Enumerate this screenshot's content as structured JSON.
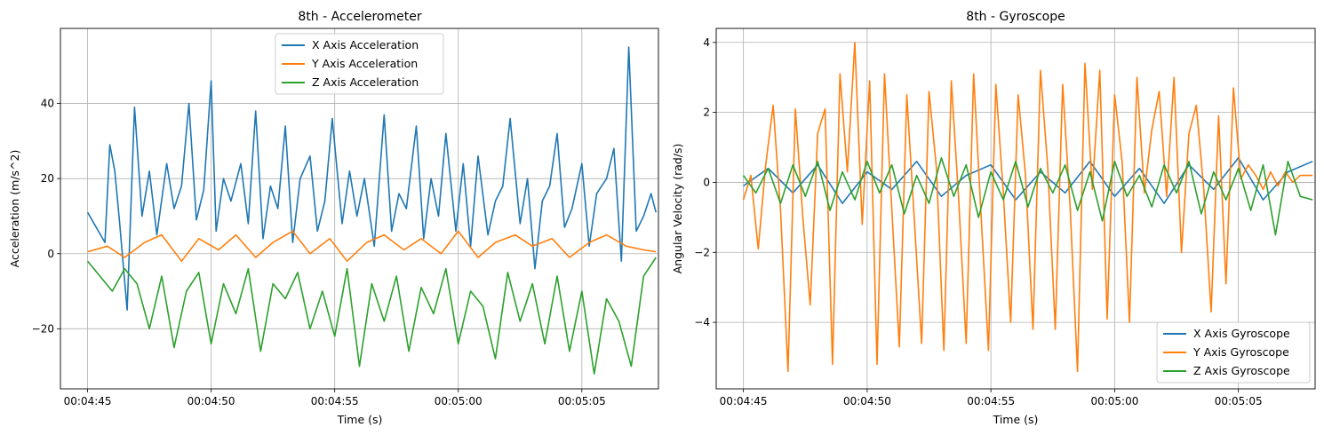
{
  "chart_data": [
    {
      "type": "line",
      "title": "8th - Accelerometer",
      "xlabel": "Time (s)",
      "ylabel": "Acceleration (m/s^2)",
      "x_ticks": [
        "00:04:45",
        "00:04:50",
        "00:04:55",
        "00:05:00",
        "00:05:05"
      ],
      "x_tick_seconds": [
        0,
        5,
        10,
        15,
        20
      ],
      "xlim": [
        -1.1,
        23.1
      ],
      "y_ticks": [
        -20,
        0,
        20,
        40
      ],
      "y_tick_labels": [
        "−20",
        "0",
        "20",
        "40"
      ],
      "ylim": [
        -36,
        60
      ],
      "grid": true,
      "legend_position": "upper center",
      "series": [
        {
          "name": "X Axis Acceleration",
          "color": "#1f77b4",
          "x": [
            0,
            0.7,
            0.9,
            1.1,
            1.3,
            1.6,
            1.9,
            2.2,
            2.5,
            2.8,
            3.2,
            3.5,
            3.8,
            4.1,
            4.4,
            4.7,
            5.0,
            5.2,
            5.5,
            5.8,
            6.2,
            6.5,
            6.8,
            7.1,
            7.4,
            7.7,
            8.0,
            8.3,
            8.6,
            9.0,
            9.3,
            9.6,
            9.9,
            10.3,
            10.6,
            10.9,
            11.2,
            11.6,
            12.0,
            12.3,
            12.6,
            12.9,
            13.3,
            13.6,
            13.9,
            14.2,
            14.5,
            14.9,
            15.2,
            15.5,
            15.8,
            16.2,
            16.5,
            16.8,
            17.1,
            17.5,
            17.8,
            18.1,
            18.4,
            18.7,
            19.0,
            19.3,
            19.6,
            20.0,
            20.3,
            20.6,
            21.0,
            21.3,
            21.6,
            21.9,
            22.2,
            22.5,
            22.8,
            23.0
          ],
          "values": [
            11,
            3,
            29,
            22,
            8,
            -15,
            39,
            10,
            22,
            5,
            24,
            12,
            18,
            40,
            9,
            17,
            46,
            6,
            20,
            14,
            24,
            8,
            38,
            4,
            18,
            12,
            34,
            3,
            20,
            26,
            6,
            14,
            36,
            8,
            22,
            10,
            20,
            2,
            37,
            6,
            16,
            12,
            34,
            4,
            20,
            10,
            32,
            6,
            24,
            2,
            26,
            5,
            14,
            18,
            36,
            8,
            20,
            -4,
            14,
            18,
            32,
            7,
            12,
            24,
            2,
            16,
            20,
            28,
            -2,
            55,
            6,
            10,
            16,
            11
          ]
        },
        {
          "name": "Y Axis Acceleration",
          "color": "#ff7f0e",
          "x": [
            0,
            0.8,
            1.5,
            2.3,
            3.0,
            3.8,
            4.5,
            5.3,
            6.0,
            6.8,
            7.5,
            8.3,
            9.0,
            9.8,
            10.5,
            11.3,
            12.0,
            12.8,
            13.5,
            14.3,
            15.0,
            15.8,
            16.5,
            17.3,
            18.0,
            18.8,
            19.5,
            20.3,
            21.0,
            21.8,
            22.5,
            23.0
          ],
          "values": [
            0.5,
            2,
            -1,
            3,
            5,
            -2,
            4,
            1,
            5,
            -1,
            3,
            6,
            0,
            4,
            -2,
            3,
            5,
            1,
            4,
            0,
            6,
            -1,
            3,
            5,
            2,
            4,
            -1,
            3,
            5,
            2,
            1,
            0.5
          ]
        },
        {
          "name": "Z Axis Acceleration",
          "color": "#2ca02c",
          "x": [
            0,
            0.5,
            1.0,
            1.5,
            2.0,
            2.5,
            3.0,
            3.5,
            4.0,
            4.5,
            5.0,
            5.5,
            6.0,
            6.5,
            7.0,
            7.5,
            8.0,
            8.5,
            9.0,
            9.5,
            10.0,
            10.5,
            11.0,
            11.5,
            12.0,
            12.5,
            13.0,
            13.5,
            14.0,
            14.5,
            15.0,
            15.5,
            16.0,
            16.5,
            17.0,
            17.5,
            18.0,
            18.5,
            19.0,
            19.5,
            20.0,
            20.5,
            21.0,
            21.5,
            22.0,
            22.5,
            23.0
          ],
          "values": [
            -2,
            -6,
            -10,
            -4,
            -8,
            -20,
            -6,
            -25,
            -10,
            -5,
            -24,
            -8,
            -16,
            -4,
            -26,
            -8,
            -12,
            -5,
            -20,
            -10,
            -22,
            -4,
            -30,
            -8,
            -18,
            -6,
            -26,
            -9,
            -16,
            -4,
            -24,
            -10,
            -14,
            -28,
            -5,
            -18,
            -8,
            -24,
            -6,
            -26,
            -10,
            -32,
            -12,
            -18,
            -30,
            -6,
            -1
          ]
        }
      ]
    },
    {
      "type": "line",
      "title": "8th - Gyroscope",
      "xlabel": "Time (s)",
      "ylabel": "Angular Velocity (rad/s)",
      "x_ticks": [
        "00:04:45",
        "00:04:50",
        "00:04:55",
        "00:05:00",
        "00:05:05"
      ],
      "x_tick_seconds": [
        0,
        5,
        10,
        15,
        20
      ],
      "xlim": [
        -1.1,
        23.1
      ],
      "y_ticks": [
        -4,
        -2,
        0,
        2,
        4
      ],
      "y_tick_labels": [
        "−4",
        "−2",
        "0",
        "2",
        "4"
      ],
      "ylim": [
        -5.9,
        4.4
      ],
      "grid": true,
      "legend_position": "lower right",
      "series": [
        {
          "name": "X Axis Gyroscope",
          "color": "#1f77b4",
          "x": [
            0,
            1,
            2,
            3,
            4,
            5,
            6,
            7,
            8,
            9,
            10,
            11,
            12,
            13,
            14,
            15,
            16,
            17,
            18,
            19,
            20,
            21,
            22,
            23
          ],
          "values": [
            -0.1,
            0.4,
            -0.3,
            0.5,
            -0.6,
            0.3,
            -0.2,
            0.6,
            -0.4,
            0.2,
            0.5,
            -0.5,
            0.3,
            -0.3,
            0.6,
            -0.4,
            0.4,
            -0.6,
            0.5,
            -0.2,
            0.7,
            -0.5,
            0.3,
            0.6
          ]
        },
        {
          "name": "Y Axis Gyroscope",
          "color": "#ff7f0e",
          "x": [
            0,
            0.3,
            0.6,
            0.9,
            1.2,
            1.5,
            1.8,
            2.1,
            2.4,
            2.7,
            3.0,
            3.3,
            3.6,
            3.9,
            4.2,
            4.5,
            4.8,
            5.1,
            5.4,
            5.7,
            6.0,
            6.3,
            6.6,
            6.9,
            7.2,
            7.5,
            7.8,
            8.1,
            8.4,
            8.7,
            9.0,
            9.3,
            9.6,
            9.9,
            10.2,
            10.5,
            10.8,
            11.1,
            11.4,
            11.7,
            12.0,
            12.3,
            12.6,
            12.9,
            13.2,
            13.5,
            13.8,
            14.1,
            14.4,
            14.7,
            15.0,
            15.3,
            15.6,
            15.9,
            16.2,
            16.5,
            16.8,
            17.1,
            17.4,
            17.7,
            18.0,
            18.3,
            18.6,
            18.9,
            19.2,
            19.5,
            19.8,
            20.1,
            20.4,
            20.7,
            21.0,
            21.3,
            21.6,
            21.9,
            22.2,
            22.5,
            22.8,
            23.0
          ],
          "values": [
            -0.5,
            0.2,
            -1.9,
            0.5,
            2.2,
            -0.8,
            -5.4,
            2.1,
            -1.0,
            -3.5,
            1.4,
            2.1,
            -5.2,
            3.1,
            0.3,
            4.0,
            -1.2,
            2.9,
            -5.2,
            3.1,
            -0.8,
            -4.7,
            2.5,
            -1.0,
            -4.6,
            2.6,
            0.4,
            -4.8,
            2.9,
            -0.5,
            -4.6,
            3.1,
            -0.9,
            -4.8,
            2.8,
            -0.3,
            -4.0,
            2.5,
            0.2,
            -4.2,
            3.2,
            0.4,
            -4.2,
            2.8,
            -0.7,
            -5.4,
            3.4,
            -0.2,
            3.2,
            -3.9,
            2.5,
            0.6,
            -4.0,
            3.0,
            -0.3,
            1.5,
            2.6,
            -0.4,
            3.0,
            -2.0,
            1.4,
            2.2,
            -0.2,
            -3.7,
            1.9,
            -2.9,
            2.7,
            0.1,
            0.5,
            0.2,
            -0.2,
            0.3,
            -0.1,
            0.3,
            0.0,
            0.2,
            0.2,
            0.2
          ]
        },
        {
          "name": "Z Axis Gyroscope",
          "color": "#2ca02c",
          "x": [
            0,
            0.5,
            1.0,
            1.5,
            2.0,
            2.5,
            3.0,
            3.5,
            4.0,
            4.5,
            5.0,
            5.5,
            6.0,
            6.5,
            7.0,
            7.5,
            8.0,
            8.5,
            9.0,
            9.5,
            10.0,
            10.5,
            11.0,
            11.5,
            12.0,
            12.5,
            13.0,
            13.5,
            14.0,
            14.5,
            15.0,
            15.5,
            16.0,
            16.5,
            17.0,
            17.5,
            18.0,
            18.5,
            19.0,
            19.5,
            20.0,
            20.5,
            21.0,
            21.5,
            22.0,
            22.5,
            23.0
          ],
          "values": [
            0.2,
            -0.3,
            0.4,
            -0.6,
            0.5,
            -0.4,
            0.6,
            -0.8,
            0.3,
            -0.5,
            0.6,
            -0.3,
            0.5,
            -0.9,
            0.2,
            -0.6,
            0.7,
            -0.4,
            0.5,
            -1.0,
            0.3,
            -0.5,
            0.6,
            -0.7,
            0.4,
            -0.3,
            0.5,
            -0.8,
            0.3,
            -1.1,
            0.6,
            -0.4,
            0.2,
            -0.7,
            0.5,
            -0.3,
            0.6,
            -0.9,
            0.3,
            -0.5,
            0.4,
            -0.8,
            0.5,
            -1.5,
            0.6,
            -0.4,
            -0.5
          ]
        }
      ]
    }
  ]
}
